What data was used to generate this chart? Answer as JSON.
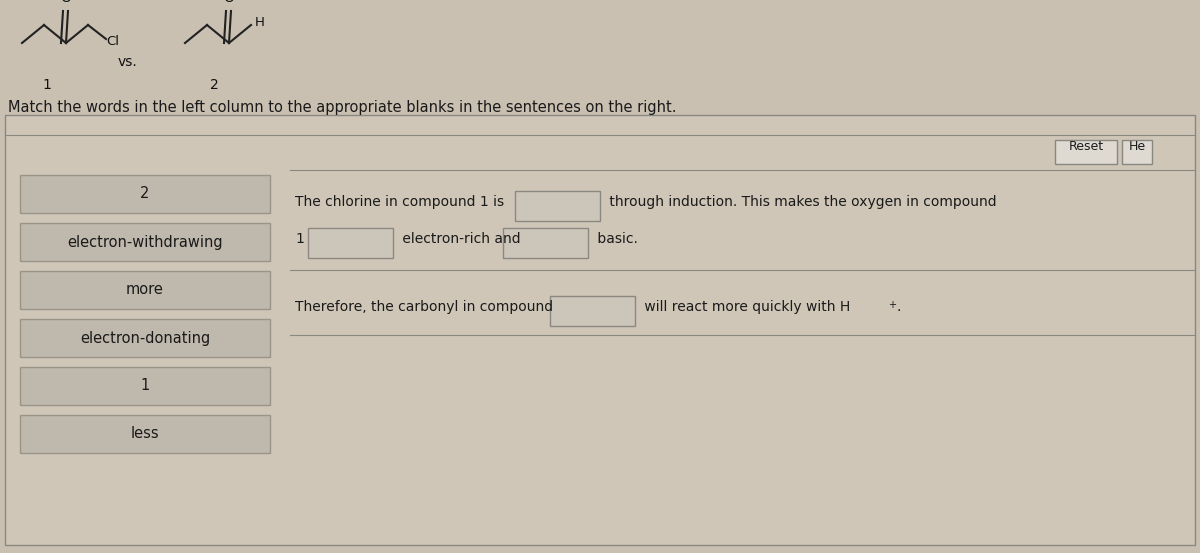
{
  "bg_color": "#c9c0b2",
  "panel_bg": "#cfc6b8",
  "box_bg": "#bfb8ac",
  "box_border": "#9a9488",
  "blank_bg": "#ccc5ba",
  "blank_border": "#8a8880",
  "white_panel": "#e8e4de",
  "title_instruction": "Match the words in the left column to the appropriate blanks in the sentences on the right.",
  "left_items": [
    "2",
    "electron-withdrawing",
    "more",
    "electron-donating",
    "1",
    "less"
  ],
  "sentence1a": "The chlorine in compound 1 is",
  "sentence1b": " through induction. This makes the oxygen in compound",
  "sentence1c": " electron-rich and",
  "sentence1d": " basic.",
  "sentence2a": "Therefore, the carbonyl in compound",
  "sentence2b": " will react more quickly with H",
  "reset_label": "Reset",
  "he_label": "He",
  "font_size_main": 10.5,
  "font_size_items": 10.5,
  "text_color": "#1a1a1a",
  "line_color": "#888880",
  "button_bg": "#dedad2",
  "button_border": "#888880"
}
